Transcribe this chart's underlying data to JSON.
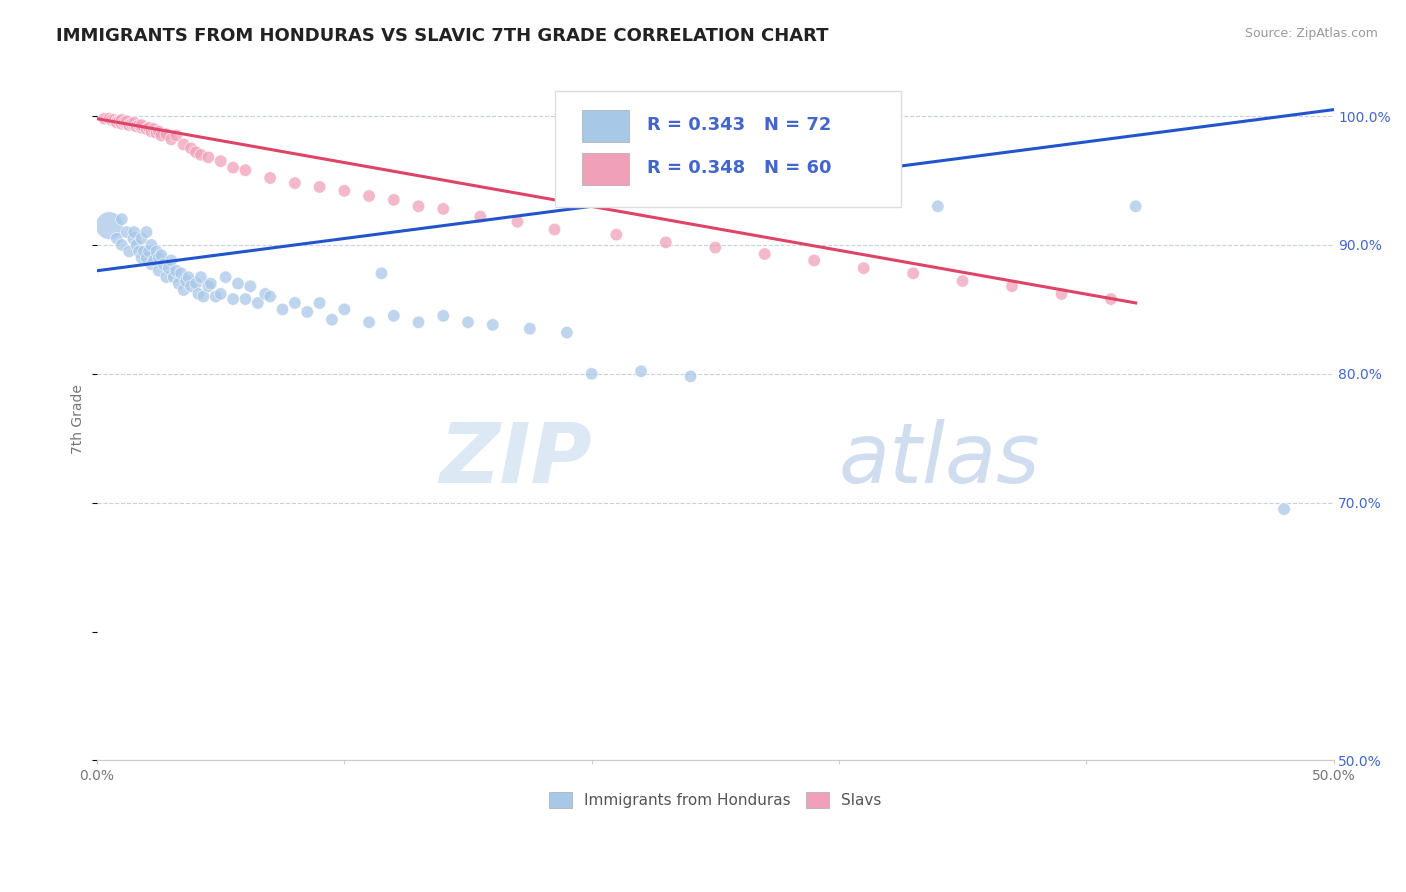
{
  "title": "IMMIGRANTS FROM HONDURAS VS SLAVIC 7TH GRADE CORRELATION CHART",
  "source": "Source: ZipAtlas.com",
  "ylabel": "7th Grade",
  "legend_label1": "Immigrants from Honduras",
  "legend_label2": "Slavs",
  "r1": 0.343,
  "n1": 72,
  "r2": 0.348,
  "n2": 60,
  "xlim": [
    0.0,
    0.5
  ],
  "ylim": [
    0.5,
    1.03
  ],
  "color_blue": "#a8c8e8",
  "color_pink": "#f0a0b8",
  "color_blue_line": "#2255cc",
  "color_pink_line": "#dd4466",
  "color_legend_text": "#4466cc",
  "background_color": "#ffffff",
  "grid_color": "#c8d0e0",
  "blue_scatter_x": [
    0.005,
    0.008,
    0.01,
    0.01,
    0.012,
    0.013,
    0.015,
    0.015,
    0.016,
    0.017,
    0.018,
    0.018,
    0.019,
    0.02,
    0.02,
    0.021,
    0.022,
    0.022,
    0.023,
    0.024,
    0.025,
    0.025,
    0.026,
    0.027,
    0.028,
    0.029,
    0.03,
    0.031,
    0.032,
    0.033,
    0.034,
    0.035,
    0.036,
    0.037,
    0.038,
    0.04,
    0.041,
    0.042,
    0.043,
    0.045,
    0.046,
    0.048,
    0.05,
    0.052,
    0.055,
    0.057,
    0.06,
    0.062,
    0.065,
    0.068,
    0.07,
    0.075,
    0.08,
    0.085,
    0.09,
    0.095,
    0.1,
    0.11,
    0.115,
    0.12,
    0.13,
    0.14,
    0.15,
    0.16,
    0.175,
    0.19,
    0.2,
    0.22,
    0.24,
    0.34,
    0.42,
    0.48
  ],
  "blue_scatter_y": [
    0.915,
    0.905,
    0.92,
    0.9,
    0.91,
    0.895,
    0.905,
    0.91,
    0.9,
    0.895,
    0.905,
    0.89,
    0.895,
    0.89,
    0.91,
    0.895,
    0.885,
    0.9,
    0.888,
    0.895,
    0.89,
    0.88,
    0.892,
    0.885,
    0.875,
    0.882,
    0.888,
    0.875,
    0.88,
    0.87,
    0.878,
    0.865,
    0.872,
    0.875,
    0.868,
    0.87,
    0.862,
    0.875,
    0.86,
    0.868,
    0.87,
    0.86,
    0.862,
    0.875,
    0.858,
    0.87,
    0.858,
    0.868,
    0.855,
    0.862,
    0.86,
    0.85,
    0.855,
    0.848,
    0.855,
    0.842,
    0.85,
    0.84,
    0.878,
    0.845,
    0.84,
    0.845,
    0.84,
    0.838,
    0.835,
    0.832,
    0.8,
    0.802,
    0.798,
    0.93,
    0.93,
    0.695
  ],
  "blue_scatter_sizes": [
    400,
    80,
    80,
    80,
    80,
    80,
    100,
    80,
    80,
    80,
    80,
    80,
    80,
    80,
    80,
    80,
    80,
    80,
    80,
    80,
    80,
    80,
    80,
    80,
    80,
    80,
    80,
    80,
    80,
    80,
    80,
    80,
    80,
    80,
    80,
    80,
    80,
    80,
    80,
    80,
    80,
    80,
    80,
    80,
    80,
    80,
    80,
    80,
    80,
    80,
    80,
    80,
    80,
    80,
    80,
    80,
    80,
    80,
    80,
    80,
    80,
    80,
    80,
    80,
    80,
    80,
    80,
    80,
    80,
    80,
    80,
    80
  ],
  "pink_scatter_x": [
    0.003,
    0.005,
    0.006,
    0.007,
    0.008,
    0.008,
    0.009,
    0.01,
    0.01,
    0.011,
    0.012,
    0.012,
    0.013,
    0.014,
    0.015,
    0.015,
    0.016,
    0.017,
    0.018,
    0.018,
    0.02,
    0.021,
    0.022,
    0.023,
    0.024,
    0.025,
    0.026,
    0.028,
    0.03,
    0.032,
    0.035,
    0.038,
    0.04,
    0.042,
    0.045,
    0.05,
    0.055,
    0.06,
    0.07,
    0.08,
    0.09,
    0.1,
    0.11,
    0.12,
    0.13,
    0.14,
    0.155,
    0.17,
    0.185,
    0.21,
    0.23,
    0.25,
    0.27,
    0.29,
    0.31,
    0.33,
    0.35,
    0.37,
    0.39,
    0.41
  ],
  "pink_scatter_y": [
    0.998,
    0.998,
    0.997,
    0.997,
    0.996,
    0.995,
    0.996,
    0.994,
    0.997,
    0.995,
    0.994,
    0.996,
    0.993,
    0.994,
    0.993,
    0.995,
    0.992,
    0.993,
    0.991,
    0.993,
    0.99,
    0.991,
    0.988,
    0.99,
    0.987,
    0.988,
    0.985,
    0.986,
    0.982,
    0.985,
    0.978,
    0.975,
    0.972,
    0.97,
    0.968,
    0.965,
    0.96,
    0.958,
    0.952,
    0.948,
    0.945,
    0.942,
    0.938,
    0.935,
    0.93,
    0.928,
    0.922,
    0.918,
    0.912,
    0.908,
    0.902,
    0.898,
    0.893,
    0.888,
    0.882,
    0.878,
    0.872,
    0.868,
    0.862,
    0.858
  ],
  "pink_scatter_sizes": [
    80,
    80,
    80,
    80,
    80,
    80,
    80,
    80,
    80,
    80,
    80,
    80,
    80,
    80,
    80,
    80,
    80,
    80,
    80,
    80,
    80,
    80,
    80,
    80,
    80,
    80,
    80,
    80,
    80,
    80,
    80,
    80,
    80,
    80,
    80,
    80,
    80,
    80,
    80,
    80,
    80,
    80,
    80,
    80,
    80,
    80,
    80,
    80,
    80,
    80,
    80,
    80,
    80,
    80,
    80,
    80,
    80,
    80,
    80,
    80
  ],
  "blue_line_x": [
    0.0,
    0.5
  ],
  "blue_line_y": [
    0.88,
    1.005
  ],
  "pink_line_x": [
    0.0,
    0.42
  ],
  "pink_line_y": [
    0.998,
    0.855
  ],
  "title_fontsize": 13,
  "axis_label_fontsize": 10,
  "tick_fontsize": 10,
  "legend_fontsize": 14,
  "source_fontsize": 9
}
